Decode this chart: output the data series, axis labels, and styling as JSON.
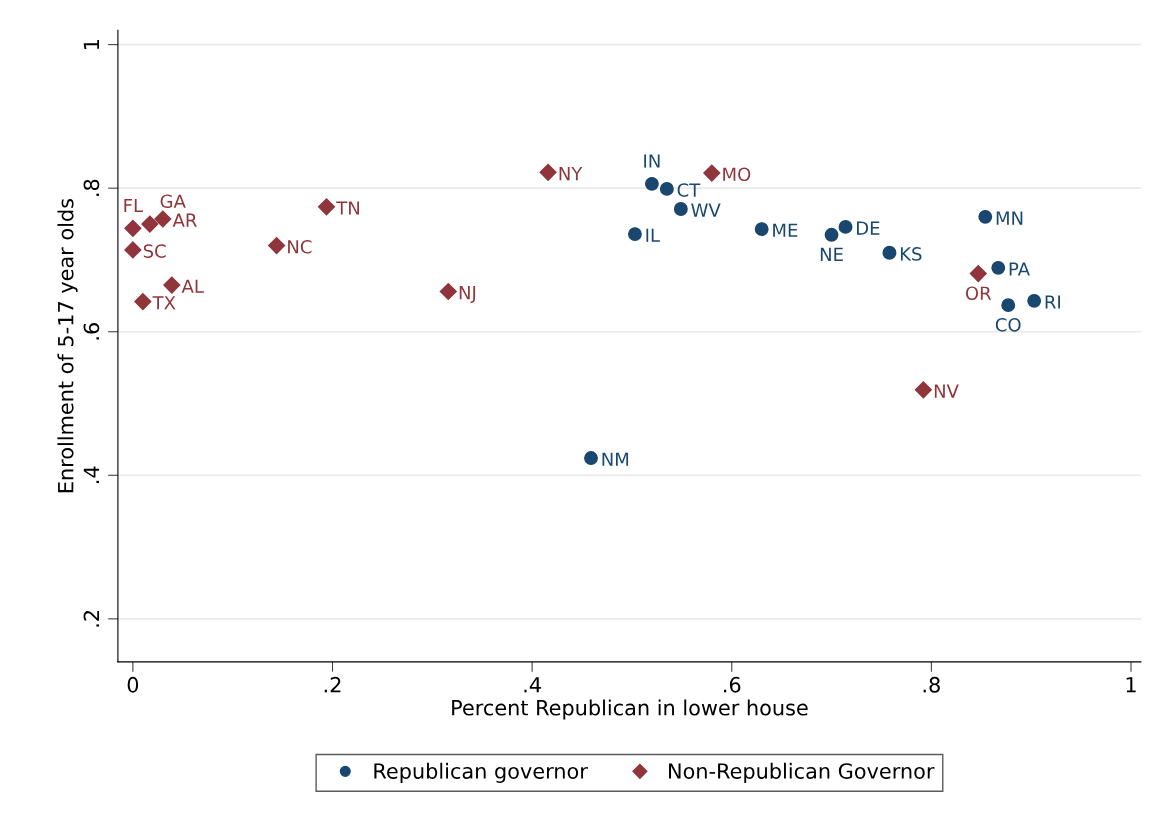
{
  "chart_data": {
    "type": "scatter",
    "xlabel": "Percent Republican in lower house",
    "ylabel": "Enrollment of 5-17 year olds",
    "xlim": [
      -0.015,
      1.01
    ],
    "ylim": [
      0.14,
      1.02
    ],
    "xticks": [
      {
        "value": 0,
        "label": "0"
      },
      {
        "value": 0.2,
        "label": ".2"
      },
      {
        "value": 0.4,
        "label": ".4"
      },
      {
        "value": 0.6,
        "label": ".6"
      },
      {
        "value": 0.8,
        "label": ".8"
      },
      {
        "value": 1,
        "label": "1"
      }
    ],
    "yticks": [
      {
        "value": 0.2,
        "label": ".2"
      },
      {
        "value": 0.4,
        "label": ".4"
      },
      {
        "value": 0.6,
        "label": ".6"
      },
      {
        "value": 0.8,
        "label": ".8"
      },
      {
        "value": 1,
        "label": "1"
      }
    ],
    "grid": "y",
    "legend": "bottom",
    "series": [
      {
        "name": "Republican governor",
        "color": "#1a476f",
        "marker": "circle",
        "x": [
          0.52,
          0.535,
          0.549,
          0.503,
          0.63,
          0.7,
          0.714,
          0.758,
          0.854,
          0.867,
          0.877,
          0.903,
          0.459
        ],
        "values": [
          0.806,
          0.799,
          0.771,
          0.736,
          0.743,
          0.735,
          0.746,
          0.71,
          0.76,
          0.689,
          0.637,
          0.643,
          0.424
        ]
      },
      {
        "name": "Non-Republican Governor",
        "color": "#90353b",
        "marker": "diamond",
        "x": [
          0,
          0.017,
          0.03,
          0,
          0.01,
          0.039,
          0.144,
          0.194,
          0.316,
          0.416,
          0.58,
          0.847,
          0.792
        ],
        "values": [
          0.744,
          0.75,
          0.757,
          0.714,
          0.642,
          0.665,
          0.72,
          0.774,
          0.656,
          0.822,
          0.821,
          0.681,
          0.519
        ]
      }
    ],
    "annotations": [
      {
        "text": "IN",
        "x": 0.52,
        "y": 0.806
      },
      {
        "text": "CT",
        "x": 0.535,
        "y": 0.799
      },
      {
        "text": "WV",
        "x": 0.549,
        "y": 0.771
      },
      {
        "text": "IL",
        "x": 0.503,
        "y": 0.736
      },
      {
        "text": "ME",
        "x": 0.63,
        "y": 0.743
      },
      {
        "text": "NE",
        "x": 0.7,
        "y": 0.735
      },
      {
        "text": "DE",
        "x": 0.714,
        "y": 0.746
      },
      {
        "text": "KS",
        "x": 0.758,
        "y": 0.71
      },
      {
        "text": "MN",
        "x": 0.854,
        "y": 0.76
      },
      {
        "text": "PA",
        "x": 0.867,
        "y": 0.689
      },
      {
        "text": "CO",
        "x": 0.877,
        "y": 0.637
      },
      {
        "text": "RI",
        "x": 0.903,
        "y": 0.643
      },
      {
        "text": "NM",
        "x": 0.459,
        "y": 0.424
      },
      {
        "text": "FL",
        "x": 0,
        "y": 0.744
      },
      {
        "text": "GA",
        "x": 0.017,
        "y": 0.75
      },
      {
        "text": "AR",
        "x": 0.03,
        "y": 0.757
      },
      {
        "text": "SC",
        "x": 0,
        "y": 0.714
      },
      {
        "text": "TX",
        "x": 0.01,
        "y": 0.642
      },
      {
        "text": "AL",
        "x": 0.039,
        "y": 0.665
      },
      {
        "text": "NC",
        "x": 0.144,
        "y": 0.72
      },
      {
        "text": "TN",
        "x": 0.194,
        "y": 0.774
      },
      {
        "text": "NJ",
        "x": 0.316,
        "y": 0.656
      },
      {
        "text": "NY",
        "x": 0.416,
        "y": 0.822
      },
      {
        "text": "MO",
        "x": 0.58,
        "y": 0.821
      },
      {
        "text": "OR",
        "x": 0.847,
        "y": 0.681
      },
      {
        "text": "NV",
        "x": 0.792,
        "y": 0.519
      }
    ]
  }
}
